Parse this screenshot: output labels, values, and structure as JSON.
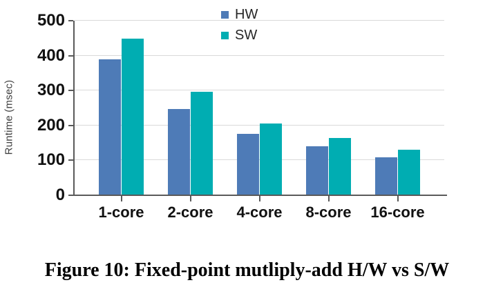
{
  "figure": {
    "caption": "Figure 10: Fixed-point mutliply-add H/W vs S/W"
  },
  "chart_data": {
    "type": "bar",
    "title": "",
    "xlabel": "",
    "ylabel": "Runtime (msec)",
    "categories": [
      "1-core",
      "2-core",
      "4-core",
      "8-core",
      "16-core"
    ],
    "series": [
      {
        "name": "HW",
        "color": "#4e7bb7",
        "values": [
          390,
          248,
          175,
          141,
          109
        ]
      },
      {
        "name": "SW",
        "color": "#00adb2",
        "values": [
          448,
          297,
          205,
          164,
          131
        ]
      }
    ],
    "ylim": [
      0,
      500
    ],
    "yticks": [
      0,
      100,
      200,
      300,
      400,
      500
    ],
    "grid": "horizontal",
    "legend_position": "top-center"
  },
  "style_colors": {
    "gridline": "#d9d9d9",
    "axis": "#595959",
    "tick_text": "#111111"
  }
}
